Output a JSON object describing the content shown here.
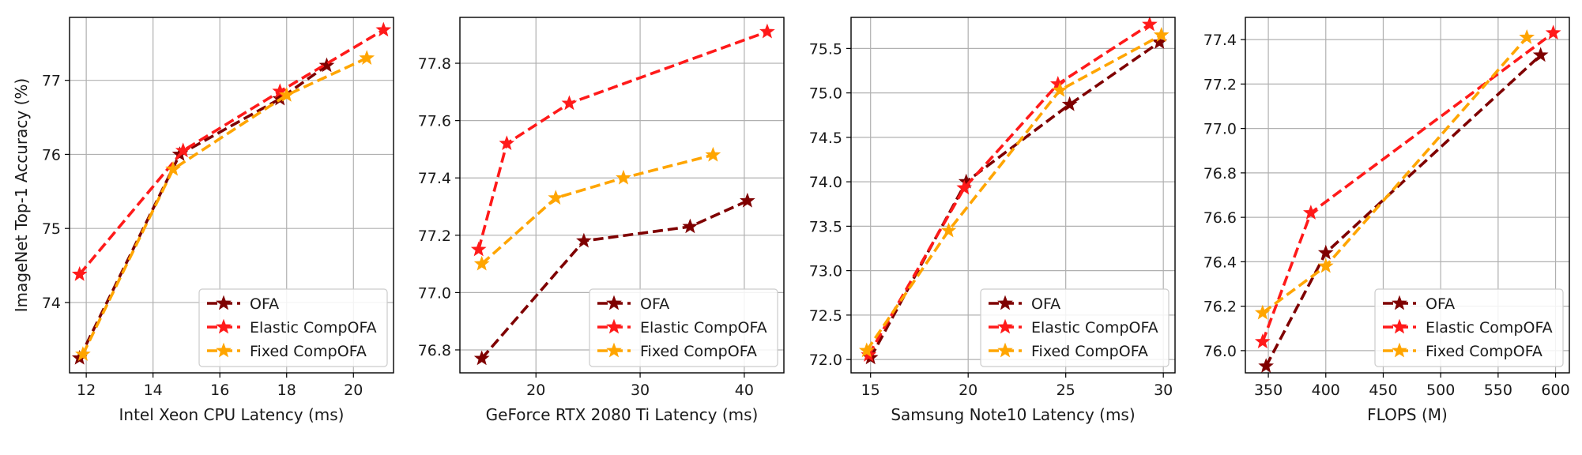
{
  "series_styles": [
    {
      "name": "OFA",
      "color": "#7f0000"
    },
    {
      "name": "Elastic CompOFA",
      "color": "#ff1a1a"
    },
    {
      "name": "Fixed CompOFA",
      "color": "#ffa500"
    }
  ],
  "chart_data": [
    {
      "type": "line",
      "xlabel": "Intel Xeon CPU Latency (ms)",
      "ylabel": "ImageNet Top-1 Accuracy (%)",
      "xlim": [
        11.5,
        21.2
      ],
      "ylim": [
        73.05,
        77.85
      ],
      "xticks": [
        12,
        14,
        16,
        18,
        20
      ],
      "yticks": [
        74,
        75,
        76,
        77
      ],
      "xtick_labels": [
        "12",
        "14",
        "16",
        "18",
        "20"
      ],
      "ytick_labels": [
        "74",
        "75",
        "76",
        "77"
      ],
      "grid": true,
      "legend_position": "bottom-right",
      "series": [
        {
          "name": "OFA",
          "x": [
            11.8,
            14.8,
            17.8,
            19.2
          ],
          "y": [
            73.25,
            76.0,
            76.75,
            77.2
          ]
        },
        {
          "name": "Elastic CompOFA",
          "x": [
            11.8,
            14.9,
            17.8,
            20.9
          ],
          "y": [
            74.38,
            76.05,
            76.85,
            77.68
          ]
        },
        {
          "name": "Fixed CompOFA",
          "x": [
            11.9,
            14.6,
            18.0,
            20.4
          ],
          "y": [
            73.3,
            75.8,
            76.8,
            77.3
          ]
        }
      ]
    },
    {
      "type": "line",
      "xlabel": "GeForce RTX 2080 Ti Latency (ms)",
      "ylabel": "",
      "xlim": [
        12.7,
        43.8
      ],
      "ylim": [
        76.72,
        77.96
      ],
      "xticks": [
        20,
        30,
        40
      ],
      "yticks": [
        76.8,
        77.0,
        77.2,
        77.4,
        77.6,
        77.8
      ],
      "xtick_labels": [
        "20",
        "30",
        "40"
      ],
      "ytick_labels": [
        "76.8",
        "77.0",
        "77.2",
        "77.4",
        "77.6",
        "77.8"
      ],
      "grid": true,
      "legend_position": "bottom-right",
      "series": [
        {
          "name": "OFA",
          "x": [
            14.8,
            24.6,
            34.8,
            40.3
          ],
          "y": [
            76.77,
            77.18,
            77.23,
            77.32
          ]
        },
        {
          "name": "Elastic CompOFA",
          "x": [
            14.5,
            17.2,
            23.2,
            42.2
          ],
          "y": [
            77.15,
            77.52,
            77.66,
            77.91
          ]
        },
        {
          "name": "Fixed CompOFA",
          "x": [
            14.8,
            21.9,
            28.4,
            37.0
          ],
          "y": [
            77.1,
            77.33,
            77.4,
            77.48
          ]
        }
      ]
    },
    {
      "type": "line",
      "xlabel": "Samsung Note10 Latency (ms)",
      "ylabel": "",
      "xlim": [
        14.0,
        30.6
      ],
      "ylim": [
        71.85,
        75.85
      ],
      "xticks": [
        15,
        20,
        25,
        30
      ],
      "yticks": [
        72.0,
        72.5,
        73.0,
        73.5,
        74.0,
        74.5,
        75.0,
        75.5
      ],
      "xtick_labels": [
        "15",
        "20",
        "25",
        "30"
      ],
      "ytick_labels": [
        "72.0",
        "72.5",
        "73.0",
        "73.5",
        "74.0",
        "74.5",
        "75.0",
        "75.5"
      ],
      "grid": true,
      "legend_position": "bottom-right",
      "series": [
        {
          "name": "OFA",
          "x": [
            15.0,
            19.9,
            25.2,
            29.8
          ],
          "y": [
            72.02,
            74.0,
            74.87,
            75.57
          ]
        },
        {
          "name": "Elastic CompOFA",
          "x": [
            14.9,
            19.8,
            24.6,
            29.3
          ],
          "y": [
            72.05,
            73.93,
            75.1,
            75.77
          ]
        },
        {
          "name": "Fixed CompOFA",
          "x": [
            14.8,
            19.0,
            24.7,
            29.9
          ],
          "y": [
            72.1,
            73.45,
            75.03,
            75.65
          ]
        }
      ]
    },
    {
      "type": "line",
      "xlabel": "FLOPS (M)",
      "ylabel": "",
      "xlim": [
        330,
        612
      ],
      "ylim": [
        75.9,
        77.5
      ],
      "xticks": [
        350,
        400,
        450,
        500,
        550,
        600
      ],
      "yticks": [
        76.0,
        76.2,
        76.4,
        76.6,
        76.8,
        77.0,
        77.2,
        77.4
      ],
      "xtick_labels": [
        "350",
        "400",
        "450",
        "500",
        "550",
        "600"
      ],
      "ytick_labels": [
        "76.0",
        "76.2",
        "76.4",
        "76.6",
        "76.8",
        "77.0",
        "77.2",
        "77.4"
      ],
      "grid": true,
      "legend_position": "bottom-right",
      "series": [
        {
          "name": "OFA",
          "x": [
            348,
            400,
            587
          ],
          "y": [
            75.93,
            76.44,
            77.33
          ]
        },
        {
          "name": "Elastic CompOFA",
          "x": [
            345,
            387,
            598
          ],
          "y": [
            76.04,
            76.62,
            77.43
          ]
        },
        {
          "name": "Fixed CompOFA",
          "x": [
            345,
            400,
            575
          ],
          "y": [
            76.17,
            76.38,
            77.41
          ]
        }
      ]
    }
  ]
}
